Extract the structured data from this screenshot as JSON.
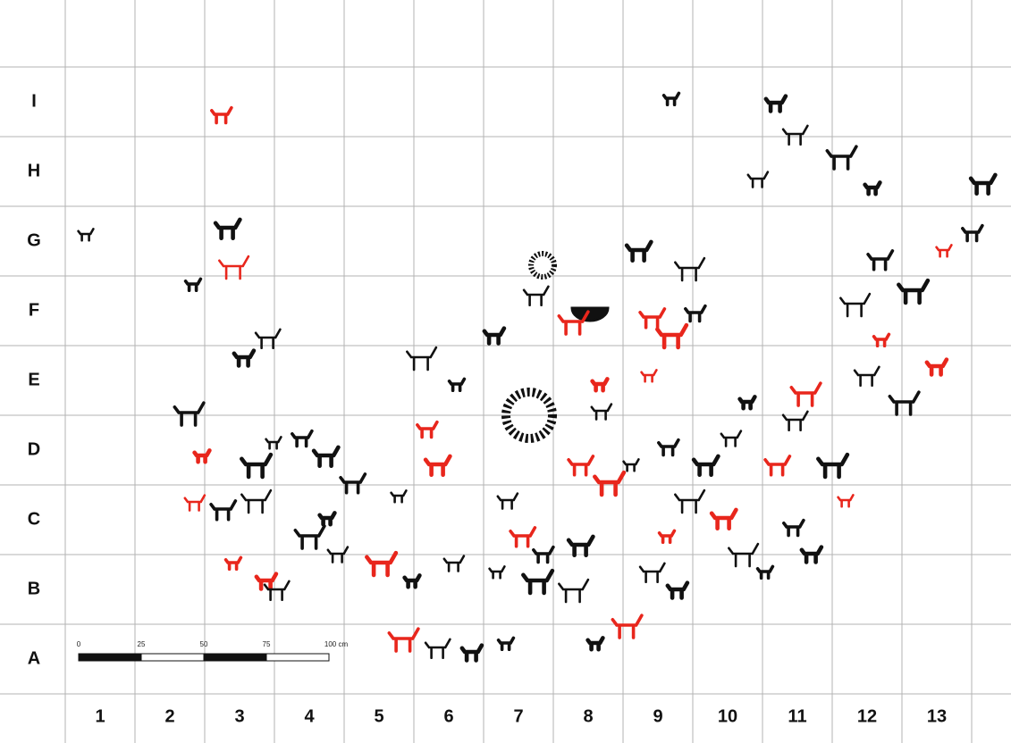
{
  "grid": {
    "rows": [
      "I",
      "H",
      "G",
      "F",
      "E",
      "D",
      "C",
      "B",
      "A"
    ],
    "columns": [
      "1",
      "2",
      "3",
      "4",
      "5",
      "6",
      "7",
      "8",
      "9",
      "10",
      "11",
      "12",
      "13"
    ]
  },
  "scale_bar": {
    "labels": [
      "0",
      "25",
      "50",
      "75",
      "100 cm"
    ]
  }
}
